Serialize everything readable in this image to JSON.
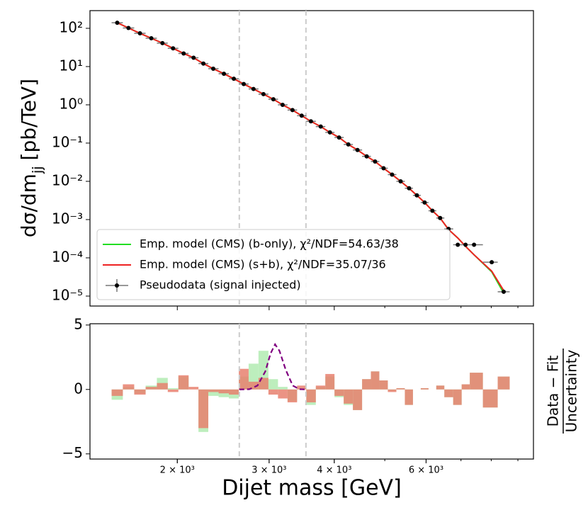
{
  "chart_data": [
    {
      "type": "scatter",
      "ylabel_main": "dσ/dm",
      "ylabel_sub": "jj",
      "ylabel_unit": "[pb/TeV]",
      "log_x": true,
      "log_y": true,
      "xlim": [
        1360,
        9640
      ],
      "ylim": [
        5.5e-06,
        290
      ],
      "yticks": [
        {
          "value": 100,
          "label": "10²"
        },
        {
          "value": 10,
          "label": "10¹"
        },
        {
          "value": 1,
          "label": "10⁰"
        },
        {
          "value": 0.1,
          "label": "10⁻¹"
        },
        {
          "value": 0.01,
          "label": "10⁻²"
        },
        {
          "value": 0.001,
          "label": "10⁻³"
        },
        {
          "value": 0.0001,
          "label": "10⁻⁴"
        },
        {
          "value": 1e-05,
          "label": "10⁻⁵"
        }
      ],
      "vlines": [
        2630,
        3530
      ],
      "legend": "lower left",
      "x": [
        1534,
        1612,
        1696,
        1783,
        1873,
        1963,
        2057,
        2149,
        2244,
        2344,
        2457,
        2567,
        2682,
        2800,
        2926,
        3057,
        3184,
        3326,
        3464,
        3608,
        3768,
        3924,
        4086,
        4256,
        4432,
        4616,
        4790,
        4973,
        5164,
        5362,
        5566,
        5760,
        5962,
        6170,
        6384,
        6626,
        6902,
        7142,
        7416,
        8018,
        8453
      ],
      "series": [
        {
          "name": "Emp. model (CMS) (b-only), χ²/NDF=54.63/38",
          "color": "#22dd22",
          "style": "line",
          "values": [
            140,
            102,
            74,
            55,
            41,
            30,
            22,
            17,
            12,
            8.8,
            6.5,
            4.8,
            3.5,
            2.6,
            1.9,
            1.4,
            1.0,
            0.73,
            0.52,
            0.37,
            0.27,
            0.19,
            0.14,
            0.092,
            0.066,
            0.045,
            0.033,
            0.022,
            0.015,
            0.01,
            0.0066,
            0.0043,
            0.0028,
            0.0017,
            0.0011,
            0.00055,
            0.00033,
            0.0002,
            0.00012,
            4.3e-05,
            1.2e-05
          ]
        },
        {
          "name": "Emp. model (CMS) (s+b), χ²/NDF=35.07/36",
          "color": "#ee2222",
          "style": "line",
          "values": [
            140,
            102,
            74,
            55,
            41,
            30,
            22,
            17,
            12,
            8.8,
            6.5,
            4.8,
            3.5,
            2.6,
            1.9,
            1.4,
            1.0,
            0.73,
            0.52,
            0.37,
            0.27,
            0.19,
            0.14,
            0.092,
            0.066,
            0.045,
            0.033,
            0.022,
            0.015,
            0.01,
            0.0066,
            0.0043,
            0.0028,
            0.0017,
            0.0011,
            0.00055,
            0.00033,
            0.0002,
            0.00012,
            4.5e-05,
            1.4e-05
          ]
        },
        {
          "name": "Pseudodata (signal injected)",
          "color": "#000000",
          "style": "points",
          "values": [
            140,
            102,
            74,
            55,
            41,
            30,
            22,
            17,
            12,
            8.8,
            6.5,
            4.8,
            3.5,
            2.6,
            1.9,
            1.4,
            1.0,
            0.73,
            0.52,
            0.37,
            0.27,
            0.19,
            0.14,
            0.092,
            0.066,
            0.045,
            0.033,
            0.022,
            0.015,
            0.01,
            0.0066,
            0.0043,
            0.0028,
            0.0017,
            0.0011,
            0.00057,
            0.00022,
            0.00022,
            0.00022,
            7.7e-05,
            1.3e-05
          ]
        }
      ]
    },
    {
      "type": "bar",
      "xlabel": "Dijet mass [GeV]",
      "ylabel_numerator": "Data − Fit",
      "ylabel_denominator": "Uncertainty",
      "log_x": true,
      "xlim": [
        1360,
        9640
      ],
      "ylim": [
        -5.4,
        5.1
      ],
      "xticks": [
        {
          "value": 2000,
          "label": "2 × 10³"
        },
        {
          "value": 3000,
          "label": "3 × 10³"
        },
        {
          "value": 4000,
          "label": "4 × 10³"
        },
        {
          "value": 6000,
          "label": "6 × 10³"
        }
      ],
      "xticks_minor": [
        5000,
        7000,
        8000,
        9000
      ],
      "yticks": [
        {
          "value": 5,
          "label": "5"
        },
        0,
        {
          "value": -5,
          "label": "−5"
        }
      ],
      "vlines": [
        2630,
        3530
      ],
      "x": [
        1534,
        1612,
        1696,
        1783,
        1873,
        1963,
        2057,
        2149,
        2244,
        2344,
        2457,
        2567,
        2682,
        2800,
        2926,
        3057,
        3184,
        3326,
        3464,
        3608,
        3768,
        3924,
        4086,
        4256,
        4432,
        4616,
        4790,
        4973,
        5164,
        5362,
        5566,
        5760,
        5962,
        6170,
        6384,
        6626,
        6902,
        7142,
        7416,
        8018,
        8453
      ],
      "series": [
        {
          "color": "#bdeebd",
          "values": [
            -0.8,
            0.2,
            -0.3,
            0.3,
            0.9,
            0.1,
            1.0,
            0.0,
            -3.3,
            -0.5,
            -0.6,
            -0.7,
            1.0,
            2.0,
            3.0,
            0.8,
            0.2,
            -0.9,
            0.1,
            -1.2,
            0.2,
            1.0,
            -0.6,
            -1.2,
            -1.6,
            0.8,
            1.4,
            0.7,
            -0.1,
            0.1,
            -1.2,
            0.0,
            0.1,
            0.0,
            0.3,
            -0.6,
            -1.2,
            0.4,
            1.3,
            -1.4,
            1.0
          ]
        },
        {
          "color": "#e8806e",
          "values": [
            -0.5,
            0.4,
            -0.4,
            0.2,
            0.5,
            -0.2,
            1.1,
            0.2,
            -3.0,
            -0.2,
            -0.3,
            -0.4,
            1.6,
            0.6,
            0.9,
            -0.4,
            -0.7,
            -1.0,
            0.3,
            -1.0,
            0.3,
            1.2,
            -0.5,
            -1.1,
            -1.6,
            0.8,
            1.4,
            0.7,
            -0.2,
            0.1,
            -1.2,
            0.0,
            0.1,
            0.0,
            0.3,
            -0.6,
            -1.2,
            0.4,
            1.3,
            -1.4,
            1.0
          ]
        }
      ],
      "signal": {
        "color": "#800080",
        "x": [
          2630,
          2750,
          2850,
          2950,
          3020,
          3080,
          3140,
          3230,
          3330,
          3430,
          3530
        ],
        "values": [
          0,
          0.02,
          0.3,
          1.4,
          2.8,
          3.5,
          3.0,
          1.5,
          0.3,
          0.02,
          0
        ]
      }
    }
  ]
}
